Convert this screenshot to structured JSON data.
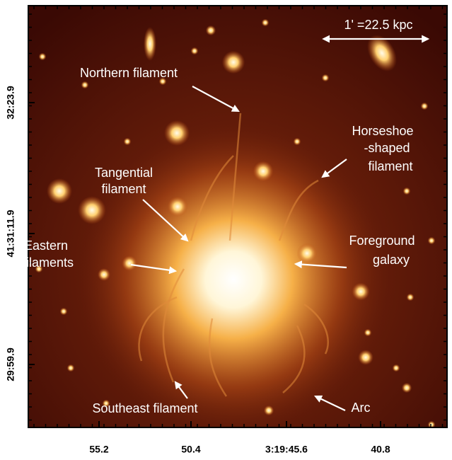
{
  "scale_bar": {
    "label": "1' =22.5 kpc"
  },
  "annotations": [
    {
      "lines": [
        "Northern filament"
      ]
    },
    {
      "lines": [
        "Horseshoe",
        "-shaped",
        "filament"
      ]
    },
    {
      "lines": [
        "Tangential",
        "filament"
      ]
    },
    {
      "lines": [
        "Eastern",
        "filaments"
      ]
    },
    {
      "lines": [
        "Foreground",
        "galaxy"
      ]
    },
    {
      "lines": [
        "Southeast filament"
      ]
    },
    {
      "lines": [
        "Arc"
      ]
    }
  ],
  "x_tick_labels": [
    "55.2",
    "50.4",
    "3:19:45.6",
    "40.8"
  ],
  "y_tick_labels": [
    "32:23.9",
    "41:31:11.9",
    "29:59.9"
  ]
}
